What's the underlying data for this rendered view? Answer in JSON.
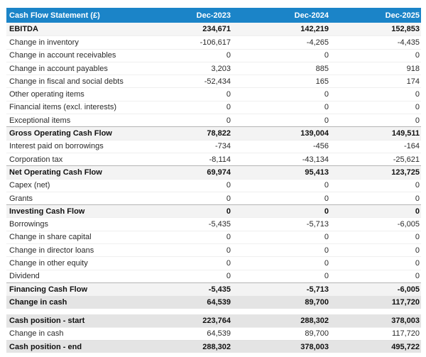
{
  "header": {
    "title": "Cash Flow Statement (£)",
    "columns": [
      "Dec-2023",
      "Dec-2024",
      "Dec-2025"
    ]
  },
  "colors": {
    "header_bg": "#1b84c8",
    "header_text": "#ffffff",
    "total_row_bg": "#f3f3f3",
    "grand_row_bg": "#e4e4e4"
  },
  "chart_data": {
    "type": "table",
    "title": "Cash Flow Statement (£)",
    "columns": [
      "Dec-2023",
      "Dec-2024",
      "Dec-2025"
    ],
    "rows": [
      {
        "label": "EBITDA",
        "values": [
          "234,671",
          "142,219",
          "152,853"
        ],
        "style": "total-first"
      },
      {
        "label": "Change in inventory",
        "values": [
          "-106,617",
          "-4,265",
          "-4,435"
        ],
        "style": "item"
      },
      {
        "label": "Change in account receivables",
        "values": [
          "0",
          "0",
          "0"
        ],
        "style": "item"
      },
      {
        "label": "Change in account payables",
        "values": [
          "3,203",
          "885",
          "918"
        ],
        "style": "item"
      },
      {
        "label": "Change in fiscal and social debts",
        "values": [
          "-52,434",
          "165",
          "174"
        ],
        "style": "item"
      },
      {
        "label": "Other operating items",
        "values": [
          "0",
          "0",
          "0"
        ],
        "style": "item"
      },
      {
        "label": "Financial items (excl. interests)",
        "values": [
          "0",
          "0",
          "0"
        ],
        "style": "item"
      },
      {
        "label": "Exceptional items",
        "values": [
          "0",
          "0",
          "0"
        ],
        "style": "item"
      },
      {
        "label": "Gross Operating Cash Flow",
        "values": [
          "78,822",
          "139,004",
          "149,511"
        ],
        "style": "total"
      },
      {
        "label": "Interest paid on borrowings",
        "values": [
          "-734",
          "-456",
          "-164"
        ],
        "style": "item"
      },
      {
        "label": "Corporation tax",
        "values": [
          "-8,114",
          "-43,134",
          "-25,621"
        ],
        "style": "item"
      },
      {
        "label": "Net Operating Cash Flow",
        "values": [
          "69,974",
          "95,413",
          "123,725"
        ],
        "style": "total"
      },
      {
        "label": "Capex (net)",
        "values": [
          "0",
          "0",
          "0"
        ],
        "style": "item"
      },
      {
        "label": "Grants",
        "values": [
          "0",
          "0",
          "0"
        ],
        "style": "item"
      },
      {
        "label": "Investing Cash Flow",
        "values": [
          "0",
          "0",
          "0"
        ],
        "style": "total"
      },
      {
        "label": "Borrowings",
        "values": [
          "-5,435",
          "-5,713",
          "-6,005"
        ],
        "style": "item"
      },
      {
        "label": "Change in share capital",
        "values": [
          "0",
          "0",
          "0"
        ],
        "style": "item"
      },
      {
        "label": "Change in director loans",
        "values": [
          "0",
          "0",
          "0"
        ],
        "style": "item"
      },
      {
        "label": "Change in other equity",
        "values": [
          "0",
          "0",
          "0"
        ],
        "style": "item"
      },
      {
        "label": "Dividend",
        "values": [
          "0",
          "0",
          "0"
        ],
        "style": "item"
      },
      {
        "label": "Financing Cash Flow",
        "values": [
          "-5,435",
          "-5,713",
          "-6,005"
        ],
        "style": "total"
      },
      {
        "label": "Change in cash",
        "values": [
          "64,539",
          "89,700",
          "117,720"
        ],
        "style": "grand"
      },
      {
        "label": "Cash position - start",
        "values": [
          "223,764",
          "288,302",
          "378,003"
        ],
        "style": "grand-first",
        "spacer_before": true
      },
      {
        "label": "Change in cash",
        "values": [
          "64,539",
          "89,700",
          "117,720"
        ],
        "style": "item"
      },
      {
        "label": "Cash position - end",
        "values": [
          "288,302",
          "378,003",
          "495,722"
        ],
        "style": "grand-sep"
      }
    ]
  }
}
